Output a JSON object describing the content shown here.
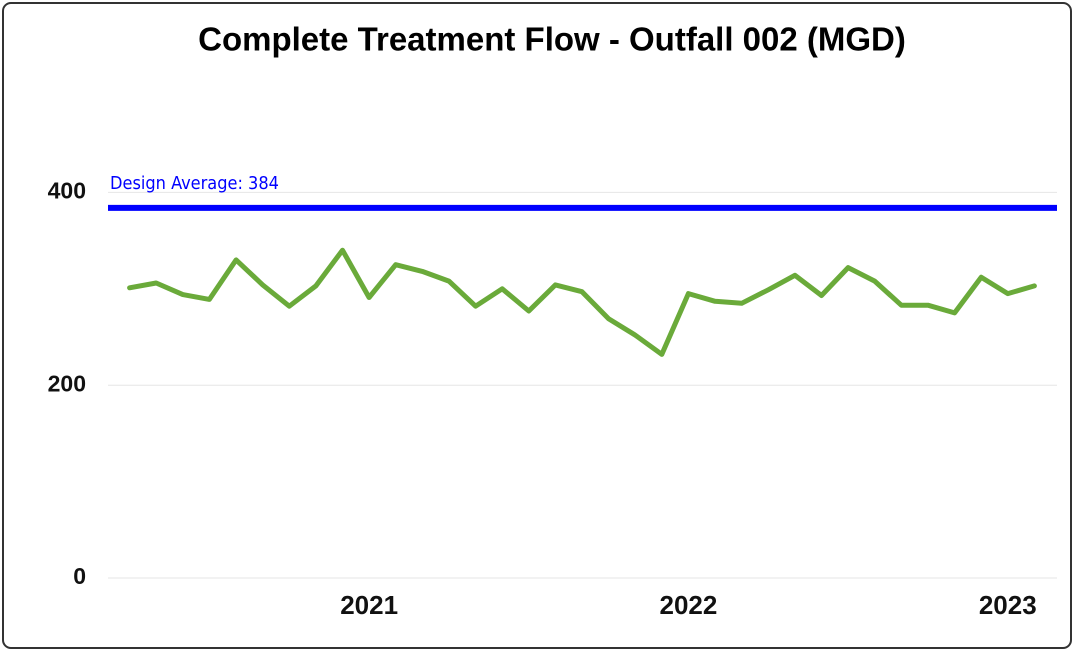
{
  "chart_data": {
    "type": "line",
    "title": "Complete Treatment Flow - Outfall 002 (MGD)",
    "x": [
      "2020-04",
      "2020-05",
      "2020-06",
      "2020-07",
      "2020-08",
      "2020-09",
      "2020-10",
      "2020-11",
      "2020-12",
      "2021-01",
      "2021-02",
      "2021-03",
      "2021-04",
      "2021-05",
      "2021-06",
      "2021-07",
      "2021-08",
      "2021-09",
      "2021-10",
      "2021-11",
      "2021-12",
      "2022-01",
      "2022-02",
      "2022-03",
      "2022-04",
      "2022-05",
      "2022-06",
      "2022-07",
      "2022-08",
      "2022-09",
      "2022-10",
      "2022-11",
      "2022-12",
      "2023-01",
      "2023-02"
    ],
    "values": [
      301,
      306,
      294,
      289,
      330,
      304,
      282,
      303,
      340,
      291,
      325,
      318,
      308,
      282,
      300,
      277,
      304,
      297,
      269,
      252,
      232,
      295,
      287,
      285,
      299,
      314,
      293,
      322,
      308,
      283,
      283,
      275,
      312,
      295,
      303
    ],
    "color": "#6aaa3a",
    "xlim": [
      "2020-03",
      "2023-03"
    ],
    "xticks": [
      {
        "value": "2021-01",
        "label": "2021"
      },
      {
        "value": "2022-01",
        "label": "2022"
      },
      {
        "value": "2023-01",
        "label": "2023"
      }
    ],
    "ylim": [
      0,
      500
    ],
    "yticks": [
      0,
      200,
      400
    ],
    "grid": true,
    "reference_line": {
      "label": "Design Average: 384",
      "value": 384,
      "color": "#0000ff"
    }
  }
}
